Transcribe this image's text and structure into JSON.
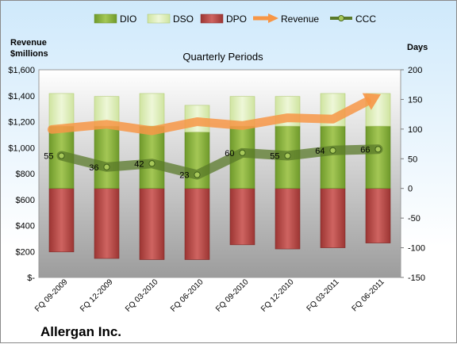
{
  "chart_data": {
    "type": "bar",
    "title": "Quarterly Periods",
    "company": "Allergan Inc.",
    "left_axis_label": [
      "Revenue",
      "$millions"
    ],
    "right_axis_label": "Days",
    "categories": [
      "FQ 09-2009",
      "FQ 12-2009",
      "FQ 03-2010",
      "FQ 06-2010",
      "FQ 09-2010",
      "FQ 12-2010",
      "FQ 03-2011",
      "FQ 06-2011"
    ],
    "left_ylim": [
      0,
      1600
    ],
    "left_ticks": [
      "$-",
      "$200",
      "$400",
      "$600",
      "$800",
      "$1,000",
      "$1,200",
      "$1,400",
      "$1,600"
    ],
    "right_ylim": [
      -150,
      200
    ],
    "right_ticks": [
      "-150",
      "-100",
      "-50",
      "0",
      "50",
      "100",
      "150",
      "200"
    ],
    "series": [
      {
        "name": "DIO",
        "axis": "right",
        "kind": "stacked-bar",
        "color": "#8fb43f",
        "values": [
          105,
          105,
          105,
          95,
          105,
          105,
          105,
          105
        ]
      },
      {
        "name": "DSO",
        "axis": "right",
        "kind": "stacked-bar",
        "color": "#e2f0c0",
        "values": [
          55,
          50,
          55,
          45,
          50,
          50,
          55,
          55
        ]
      },
      {
        "name": "DPO",
        "axis": "right",
        "kind": "stacked-bar",
        "color": "#c0504d",
        "values": [
          -107,
          -118,
          -120,
          -120,
          -95,
          -102,
          -100,
          -92
        ]
      },
      {
        "name": "Revenue",
        "axis": "left",
        "kind": "arrow-line",
        "color": "#f79646",
        "values": [
          1140,
          1180,
          1130,
          1200,
          1170,
          1230,
          1220,
          1400
        ]
      },
      {
        "name": "CCC",
        "axis": "right",
        "kind": "line",
        "color": "#5a7a2a",
        "values": [
          55,
          36,
          42,
          23,
          60,
          55,
          64,
          66
        ]
      }
    ],
    "ccc_labels": [
      "55",
      "36",
      "42",
      "23",
      "60",
      "55",
      "64",
      "66"
    ],
    "grid": false,
    "legend_position": "top"
  }
}
